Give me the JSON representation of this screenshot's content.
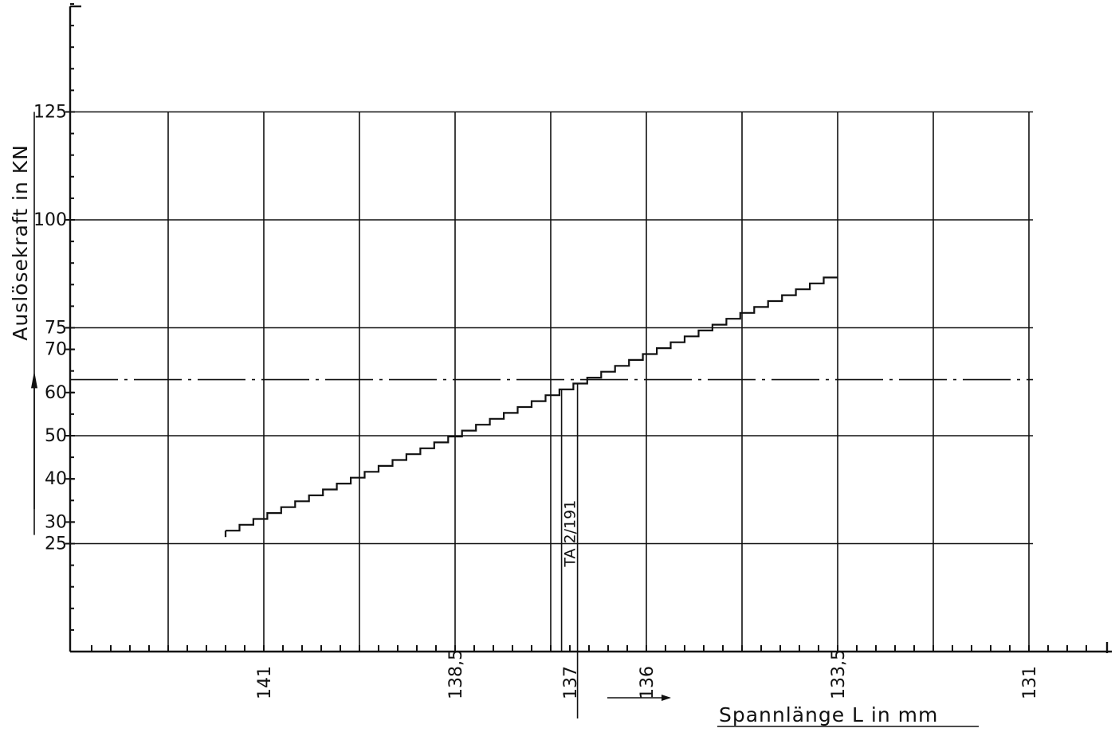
{
  "chart_data": {
    "type": "line",
    "xlabel": "Spannlänge L in mm",
    "ylabel": "Auslösekraft in KN",
    "x_direction": "decreasing to the right",
    "xlim": [
      143.5,
      130
    ],
    "ylim": [
      0,
      150
    ],
    "x_ticks": [
      "141",
      "138,5",
      "137",
      "136",
      "133,5",
      "131"
    ],
    "y_ticks": [
      "125",
      "100",
      "75",
      "70",
      "60",
      "50",
      "40",
      "30",
      "25"
    ],
    "grid": true,
    "series": [
      {
        "x": [
          141.5,
          133.5
        ],
        "y": [
          28,
          88
        ]
      }
    ],
    "annotations": [
      {
        "text": "TA 2/191",
        "x": 136.9,
        "y_from": 25,
        "y_to": 62
      },
      {
        "text": "dash-dot horizontal reference line",
        "y": 63
      }
    ]
  }
}
